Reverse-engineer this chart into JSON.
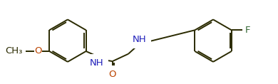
{
  "background_color": "#ffffff",
  "line_color": "#2a2a00",
  "atom_label_color_N": "#2020bb",
  "atom_label_color_O": "#bb4400",
  "atom_label_color_F": "#336633",
  "line_width": 1.4,
  "fig_width": 3.9,
  "fig_height": 1.18,
  "dpi": 100,
  "xlim": [
    -0.5,
    10.0
  ],
  "ylim": [
    0.0,
    3.0
  ]
}
